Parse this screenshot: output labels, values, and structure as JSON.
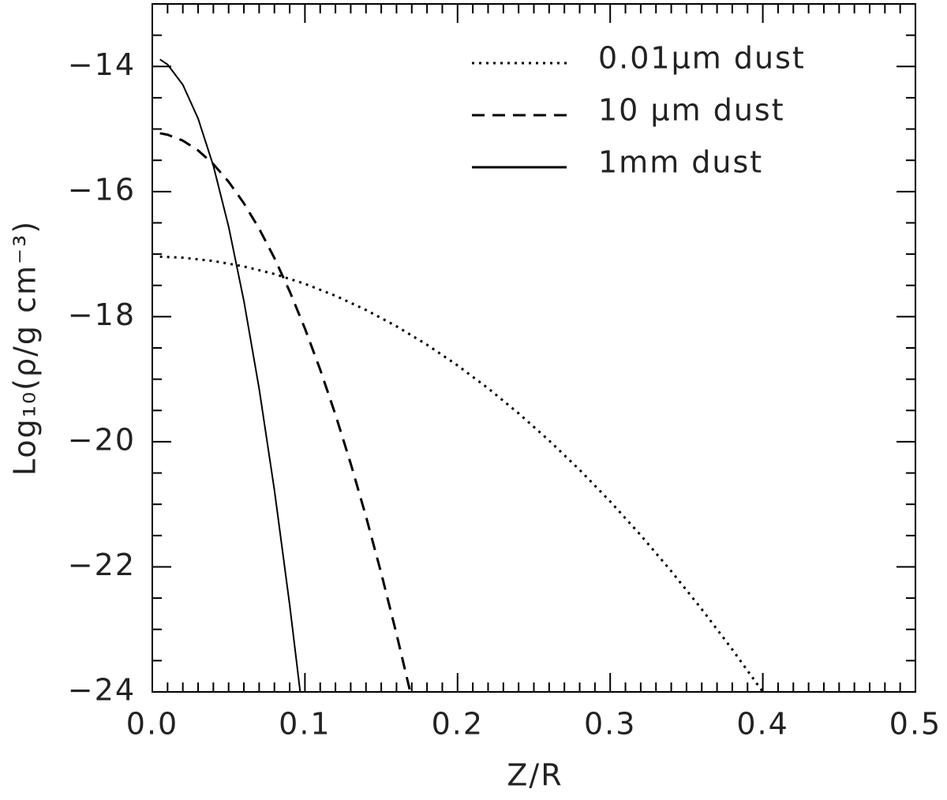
{
  "chart_data": {
    "type": "line",
    "xlabel": "Z/R",
    "ylabel": "Log₁₀(ρ/g cm⁻³)",
    "xlim": [
      0,
      0.5
    ],
    "ylim": [
      -24,
      -13
    ],
    "xticks": [
      {
        "value": 0,
        "label": "0.0"
      },
      0.1,
      0.2,
      0.3,
      0.4,
      0.5
    ],
    "yticks": [
      {
        "value": -24,
        "label": "−24"
      },
      {
        "value": -22,
        "label": "−22"
      },
      {
        "value": -20,
        "label": "−20"
      },
      {
        "value": -18,
        "label": "−18"
      },
      {
        "value": -16,
        "label": "−16"
      },
      {
        "value": -14,
        "label": "−14"
      }
    ],
    "xminorticks": [
      0.01,
      0.02,
      0.03,
      0.04,
      0.05,
      0.06,
      0.07,
      0.08,
      0.09,
      0.11,
      0.12,
      0.13,
      0.14,
      0.15,
      0.16,
      0.17,
      0.18,
      0.19,
      0.21,
      0.22,
      0.23,
      0.24,
      0.25,
      0.26,
      0.27,
      0.28,
      0.29,
      0.31,
      0.32,
      0.33,
      0.34,
      0.35,
      0.36,
      0.37,
      0.38,
      0.39,
      0.41,
      0.42,
      0.43,
      0.44,
      0.45,
      0.46,
      0.47,
      0.48,
      0.49
    ],
    "yminorticks": [
      -23.5,
      -23,
      -22.5,
      -21.5,
      -21,
      -20.5,
      -19.5,
      -19,
      -18.5,
      -17.5,
      -17,
      -16.5,
      -15.5,
      -15,
      -14.5,
      -13.5
    ],
    "legend": "top-right",
    "series": [
      {
        "name": "0.01μm dust",
        "color": "#000000",
        "dash": "dotted",
        "x": [
          0.005,
          0.02,
          0.04,
          0.06,
          0.08,
          0.1,
          0.12,
          0.14,
          0.16,
          0.18,
          0.2,
          0.22,
          0.24,
          0.26,
          0.28,
          0.3,
          0.32,
          0.34,
          0.36,
          0.38,
          0.4
        ],
        "values": [
          -17.041,
          -17.057,
          -17.11,
          -17.197,
          -17.318,
          -17.475,
          -17.666,
          -17.893,
          -18.154,
          -18.449,
          -18.78,
          -19.145,
          -19.546,
          -19.981,
          -20.45,
          -20.955,
          -21.494,
          -22.069,
          -22.678,
          -23.321,
          -24.0
        ]
      },
      {
        "name": "10 μm dust",
        "color": "#000000",
        "dash": "dashed",
        "x": [
          0.005,
          0.01,
          0.02,
          0.03,
          0.04,
          0.05,
          0.06,
          0.07,
          0.08,
          0.09,
          0.1,
          0.11,
          0.12,
          0.13,
          0.14,
          0.15,
          0.16,
          0.169
        ],
        "values": [
          -15.068,
          -15.091,
          -15.185,
          -15.342,
          -15.561,
          -15.843,
          -16.187,
          -16.594,
          -17.063,
          -17.595,
          -18.19,
          -18.847,
          -19.567,
          -20.35,
          -21.195,
          -22.103,
          -23.073,
          -24.0
        ]
      },
      {
        "name": "1mm dust",
        "color": "#000000",
        "dash": "solid",
        "x": [
          0.005,
          0.01,
          0.02,
          0.03,
          0.04,
          0.05,
          0.06,
          0.07,
          0.08,
          0.09,
          0.0969
        ],
        "values": [
          -13.887,
          -13.968,
          -14.292,
          -14.832,
          -15.588,
          -16.56,
          -17.748,
          -19.152,
          -20.772,
          -22.608,
          -24.0
        ]
      }
    ]
  }
}
